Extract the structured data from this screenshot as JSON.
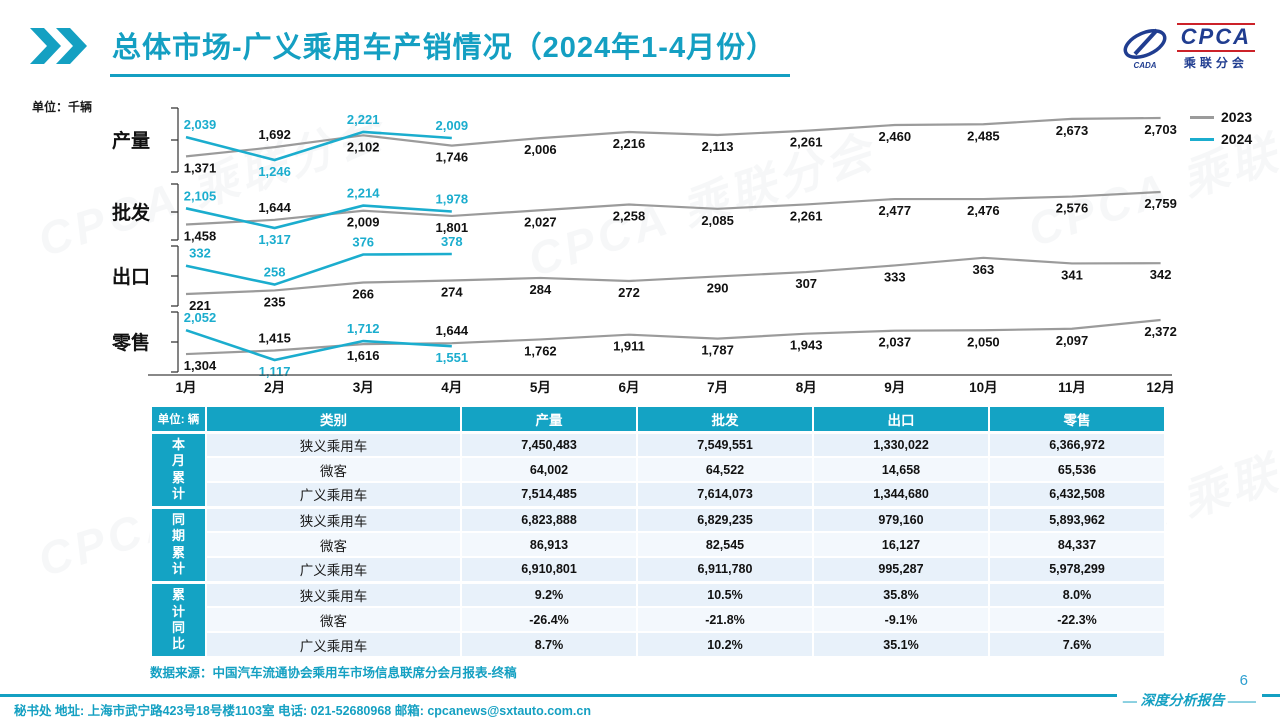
{
  "header": {
    "title": "总体市场-广义乘用车产销情况（2024年1-4月份）",
    "logo": {
      "name": "CPCA",
      "sub": "乘联分会",
      "swoosh": "CADA"
    }
  },
  "watermark": "CPCA 乘联分会",
  "charts": {
    "unit_label": "单位：千辆",
    "months": [
      "1月",
      "2月",
      "3月",
      "4月",
      "5月",
      "6月",
      "7月",
      "8月",
      "9月",
      "10月",
      "11月",
      "12月"
    ],
    "legend": [
      {
        "label": "2023",
        "color": "#9b9b9b"
      },
      {
        "label": "2024",
        "color": "#1badce"
      }
    ]
  },
  "chart_data": [
    {
      "type": "line",
      "title": "产量",
      "x": [
        "1月",
        "2月",
        "3月",
        "4月",
        "5月",
        "6月",
        "7月",
        "8月",
        "9月",
        "10月",
        "11月",
        "12月"
      ],
      "series": [
        {
          "name": "2023",
          "values": [
            1371,
            1692,
            2102,
            1746,
            2006,
            2216,
            2113,
            2261,
            2460,
            2485,
            2673,
            2703
          ]
        },
        {
          "name": "2024",
          "values": [
            2039,
            1246,
            2221,
            2009
          ]
        }
      ],
      "ylabel": "千辆",
      "legend_position": "top-right",
      "grid": false
    },
    {
      "type": "line",
      "title": "批发",
      "x": [
        "1月",
        "2月",
        "3月",
        "4月",
        "5月",
        "6月",
        "7月",
        "8月",
        "9月",
        "10月",
        "11月",
        "12月"
      ],
      "series": [
        {
          "name": "2023",
          "values": [
            1458,
            1644,
            2009,
            1801,
            2027,
            2258,
            2085,
            2261,
            2477,
            2476,
            2576,
            2759
          ]
        },
        {
          "name": "2024",
          "values": [
            2105,
            1317,
            2214,
            1978
          ]
        }
      ],
      "ylabel": "千辆",
      "legend_position": "top-right",
      "grid": false
    },
    {
      "type": "line",
      "title": "出口",
      "x": [
        "1月",
        "2月",
        "3月",
        "4月",
        "5月",
        "6月",
        "7月",
        "8月",
        "9月",
        "10月",
        "11月",
        "12月"
      ],
      "series": [
        {
          "name": "2023",
          "values": [
            221,
            235,
            266,
            274,
            284,
            272,
            290,
            307,
            333,
            363,
            341,
            342
          ]
        },
        {
          "name": "2024",
          "values": [
            332,
            258,
            376,
            378
          ]
        }
      ],
      "ylabel": "千辆",
      "legend_position": "top-right",
      "grid": false
    },
    {
      "type": "line",
      "title": "零售",
      "x": [
        "1月",
        "2月",
        "3月",
        "4月",
        "5月",
        "6月",
        "7月",
        "8月",
        "9月",
        "10月",
        "11月",
        "12月"
      ],
      "series": [
        {
          "name": "2023",
          "values": [
            1304,
            1415,
            1616,
            1644,
            1762,
            1911,
            1787,
            1943,
            2037,
            2050,
            2097,
            2372
          ]
        },
        {
          "name": "2024",
          "values": [
            2052,
            1117,
            1712,
            1551
          ]
        }
      ],
      "ylabel": "千辆",
      "legend_position": "top-right",
      "grid": false
    }
  ],
  "table": {
    "unit_header": "单位: 辆",
    "columns": [
      "类别",
      "产量",
      "批发",
      "出口",
      "零售"
    ],
    "groups": [
      {
        "label": "本月累计",
        "rows": [
          [
            "狭义乘用车",
            "7,450,483",
            "7,549,551",
            "1,330,022",
            "6,366,972"
          ],
          [
            "微客",
            "64,002",
            "64,522",
            "14,658",
            "65,536"
          ],
          [
            "广义乘用车",
            "7,514,485",
            "7,614,073",
            "1,344,680",
            "6,432,508"
          ]
        ]
      },
      {
        "label": "同期累计",
        "rows": [
          [
            "狭义乘用车",
            "6,823,888",
            "6,829,235",
            "979,160",
            "5,893,962"
          ],
          [
            "微客",
            "86,913",
            "82,545",
            "16,127",
            "84,337"
          ],
          [
            "广义乘用车",
            "6,910,801",
            "6,911,780",
            "995,287",
            "5,978,299"
          ]
        ]
      },
      {
        "label": "累计同比",
        "rows": [
          [
            "狭义乘用车",
            "9.2%",
            "10.5%",
            "35.8%",
            "8.0%"
          ],
          [
            "微客",
            "-26.4%",
            "-21.8%",
            "-9.1%",
            "-22.3%"
          ],
          [
            "广义乘用车",
            "8.7%",
            "10.2%",
            "35.1%",
            "7.6%"
          ]
        ]
      }
    ]
  },
  "source_note": "数据来源：中国汽车流通协会乘用车市场信息联席分会月报表-终稿",
  "footer": {
    "left": "秘书处    地址: 上海市武宁路423号18号楼1103室    电话: 021-52680968    邮箱: cpcanews@sxtauto.com.cn",
    "right": "深度分析报告",
    "page": "6"
  },
  "colors": {
    "accent": "#14a0c2",
    "line_2023": "#9b9b9b",
    "line_2024": "#1badce",
    "logo_blue": "#203d90",
    "logo_red": "#cc2229"
  }
}
